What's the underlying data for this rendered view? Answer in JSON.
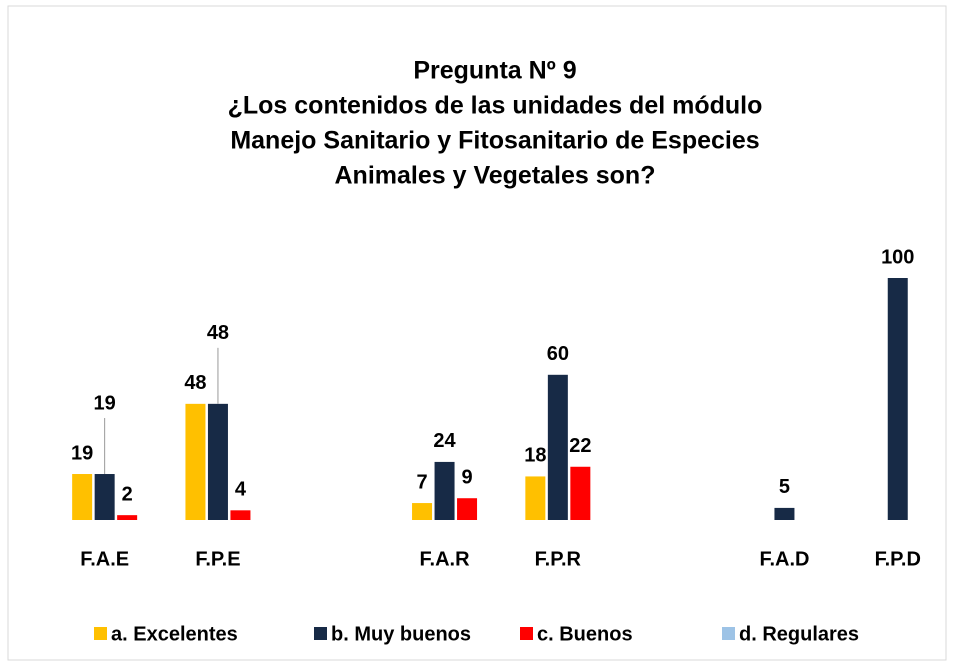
{
  "chart_data": {
    "type": "bar",
    "title": [
      "Pregunta Nº 9",
      "¿Los contenidos de las unidades  del módulo",
      "Manejo Sanitario y Fitosanitario de Especies",
      "Animales y Vegetales son?"
    ],
    "categories": [
      "F.A.E",
      "F.P.E",
      null,
      "F.A.R",
      "F.P.R",
      null,
      "F.A.D",
      "F.P.D"
    ],
    "series": [
      {
        "name": "a. Excelentes",
        "color": "#ffc000",
        "values": [
          19,
          48,
          null,
          7,
          18,
          null,
          null,
          null
        ]
      },
      {
        "name": "b. Muy buenos",
        "color": "#172a46",
        "values": [
          19,
          48,
          null,
          24,
          60,
          null,
          5,
          100
        ]
      },
      {
        "name": "c. Buenos",
        "color": "#ff0000",
        "values": [
          2,
          4,
          null,
          9,
          22,
          null,
          null,
          null
        ]
      },
      {
        "name": "d. Regulares",
        "color": "#9dc3e6",
        "values": [
          null,
          null,
          null,
          null,
          null,
          null,
          null,
          null
        ]
      }
    ],
    "ylim": [
      0,
      100
    ],
    "legend": "bottom"
  }
}
